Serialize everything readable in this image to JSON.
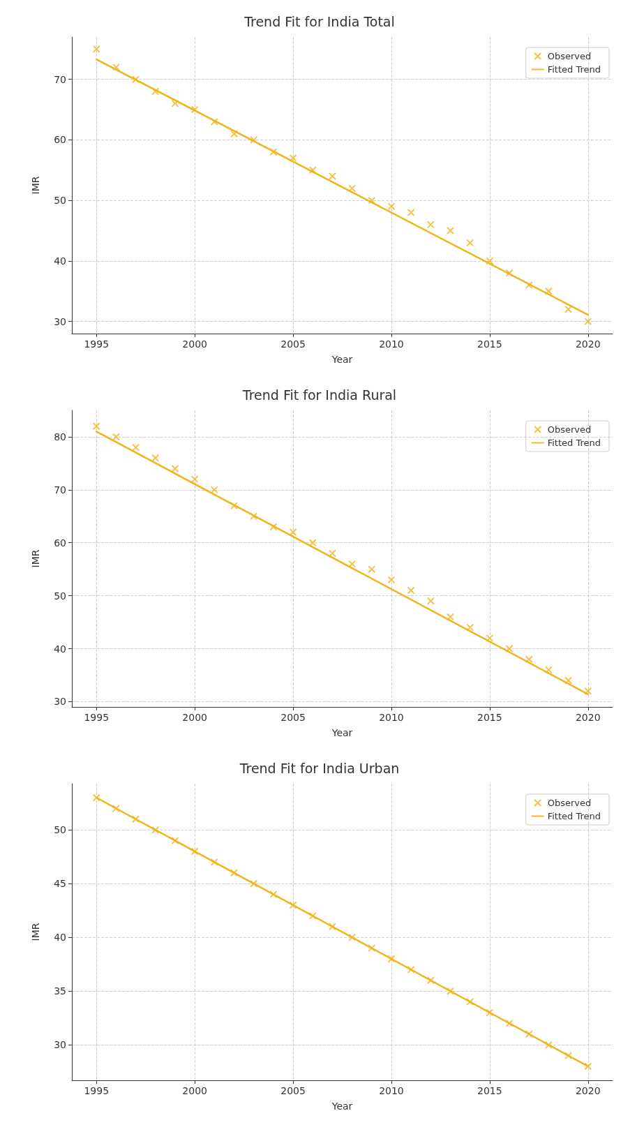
{
  "chart_data": [
    {
      "type": "scatter",
      "title": "Trend Fit for India Total",
      "xlabel": "Year",
      "ylabel": "IMR",
      "xlim": [
        1993.75,
        2021.25
      ],
      "xticks": [
        1995,
        2000,
        2005,
        2010,
        2015,
        2020
      ],
      "ylim": [
        28,
        77
      ],
      "yticks": [
        30,
        40,
        50,
        60,
        70
      ],
      "grid": true,
      "legend": "top right",
      "series": [
        {
          "name": "Observed",
          "marker": "cross",
          "color": "#f0b41c",
          "x": [
            1995,
            1996,
            1997,
            1998,
            1999,
            2000,
            2001,
            2002,
            2003,
            2004,
            2005,
            2006,
            2007,
            2008,
            2009,
            2010,
            2011,
            2012,
            2013,
            2014,
            2015,
            2016,
            2017,
            2018,
            2019,
            2020
          ],
          "values": [
            75,
            72,
            70,
            68,
            66,
            65,
            63,
            61,
            60,
            58,
            57,
            55,
            54,
            52,
            50,
            49,
            48,
            46,
            45,
            43,
            40,
            38,
            36,
            35,
            32,
            30
          ]
        },
        {
          "name": "Fitted Trend",
          "type": "line",
          "marker": "none",
          "line_style": "solid",
          "color": "#f0b41c",
          "x": [
            1995,
            2020
          ],
          "values": [
            73.3,
            31.1
          ]
        }
      ]
    },
    {
      "type": "scatter",
      "title": "Trend Fit for India Rural",
      "xlabel": "Year",
      "ylabel": "IMR",
      "xlim": [
        1993.75,
        2021.25
      ],
      "xticks": [
        1995,
        2000,
        2005,
        2010,
        2015,
        2020
      ],
      "ylim": [
        29,
        85
      ],
      "yticks": [
        30,
        40,
        50,
        60,
        70,
        80
      ],
      "grid": true,
      "legend": "top right",
      "series": [
        {
          "name": "Observed",
          "marker": "cross",
          "color": "#f0b41c",
          "x": [
            1995,
            1996,
            1997,
            1998,
            1999,
            2000,
            2001,
            2002,
            2003,
            2004,
            2005,
            2006,
            2007,
            2008,
            2009,
            2010,
            2011,
            2012,
            2013,
            2014,
            2015,
            2016,
            2017,
            2018,
            2019,
            2020
          ],
          "values": [
            82,
            80,
            78,
            76,
            74,
            72,
            70,
            67,
            65,
            63,
            62,
            60,
            58,
            56,
            55,
            53,
            51,
            49,
            46,
            44,
            42,
            40,
            38,
            36,
            34,
            32
          ]
        },
        {
          "name": "Fitted Trend",
          "type": "line",
          "marker": "none",
          "line_style": "solid",
          "color": "#f0b41c",
          "x": [
            1995,
            2020
          ],
          "values": [
            81,
            31.4
          ]
        }
      ]
    },
    {
      "type": "scatter",
      "title": "Trend Fit for India Urban",
      "xlabel": "Year",
      "ylabel": "IMR",
      "xlim": [
        1993.75,
        2021.25
      ],
      "xticks": [
        1995,
        2000,
        2005,
        2010,
        2015,
        2020
      ],
      "ylim": [
        26.7,
        54.3
      ],
      "yticks": [
        30,
        35,
        40,
        45,
        50
      ],
      "grid": true,
      "legend": "top right",
      "series": [
        {
          "name": "Observed",
          "marker": "cross",
          "color": "#f0b41c",
          "x": [
            1995,
            1996,
            1997,
            1998,
            1999,
            2000,
            2001,
            2002,
            2003,
            2004,
            2005,
            2006,
            2007,
            2008,
            2009,
            2010,
            2011,
            2012,
            2013,
            2014,
            2015,
            2016,
            2017,
            2018,
            2019,
            2020
          ],
          "values": [
            53,
            52,
            51,
            50,
            49,
            48,
            47,
            46,
            45,
            44,
            43,
            42,
            41,
            40,
            39,
            38,
            37,
            36,
            35,
            34,
            33,
            32,
            31,
            30,
            29,
            28
          ]
        },
        {
          "name": "Fitted Trend",
          "type": "line",
          "marker": "none",
          "line_style": "solid",
          "color": "#f0b41c",
          "x": [
            1995,
            2020
          ],
          "values": [
            53,
            28
          ]
        }
      ]
    }
  ]
}
